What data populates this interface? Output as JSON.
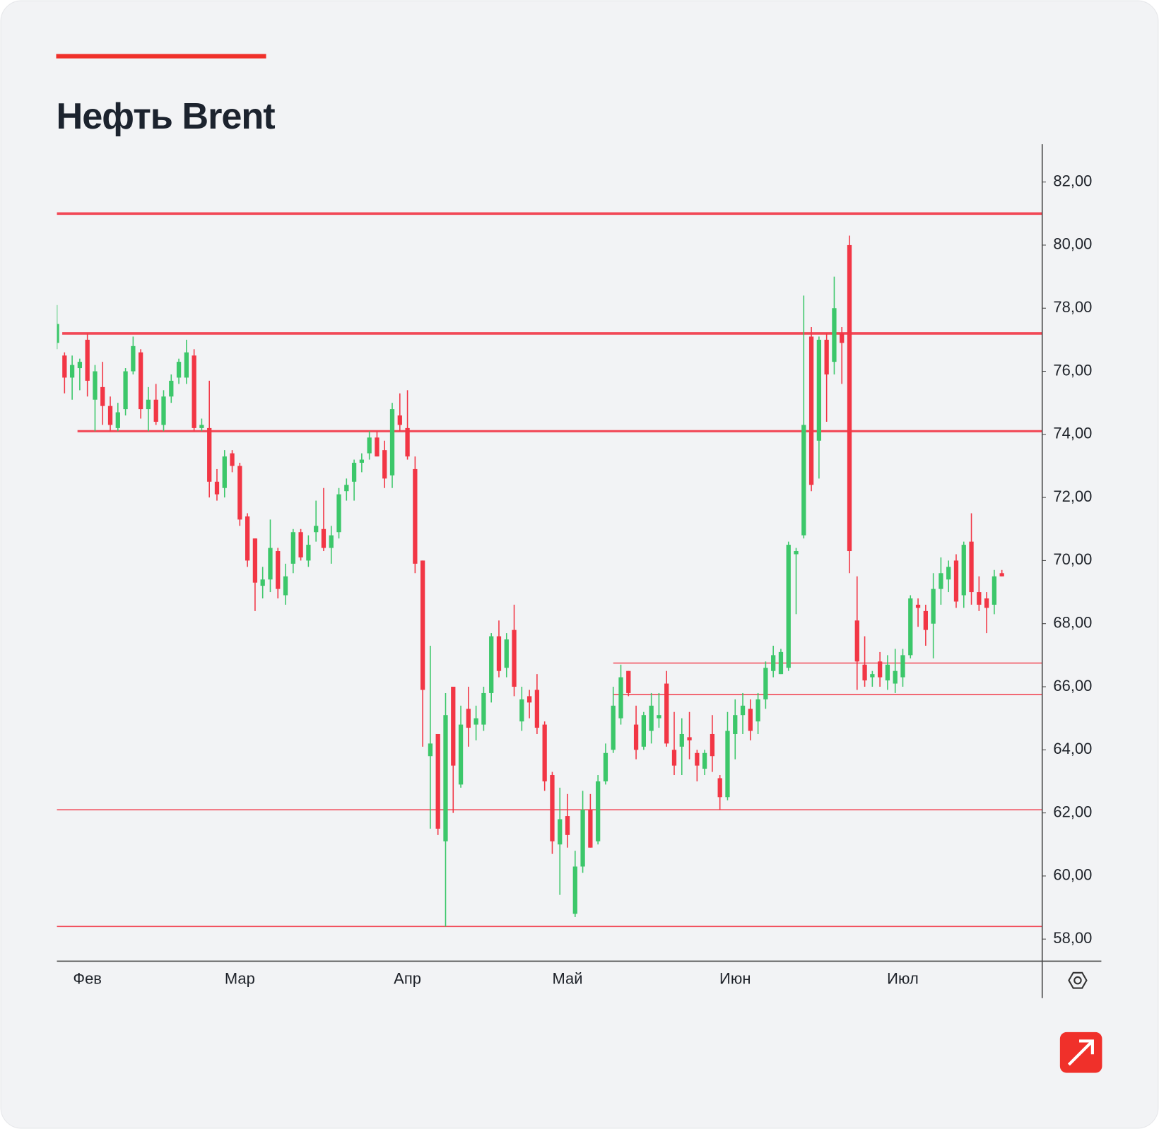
{
  "chart_data": {
    "type": "candlestick",
    "title": "Нефть Brent",
    "categories": [
      null,
      null,
      null,
      null,
      "Фев",
      null,
      null,
      null,
      null,
      null,
      null,
      null,
      null,
      null,
      null,
      null,
      null,
      null,
      null,
      null,
      null,
      null,
      null,
      null,
      "Мар",
      null,
      null,
      null,
      null,
      null,
      null,
      null,
      null,
      null,
      null,
      null,
      null,
      null,
      null,
      null,
      null,
      null,
      null,
      null,
      null,
      null,
      "Апр",
      null,
      null,
      null,
      null,
      null,
      null,
      null,
      null,
      null,
      null,
      null,
      null,
      null,
      null,
      null,
      null,
      null,
      null,
      null,
      null,
      "Май",
      null,
      null,
      null,
      null,
      null,
      null,
      null,
      null,
      null,
      null,
      null,
      null,
      null,
      null,
      null,
      null,
      null,
      null,
      null,
      null,
      null,
      "Июн",
      null,
      null,
      null,
      null,
      null,
      null,
      null,
      null,
      null,
      null,
      null,
      null,
      null,
      null,
      null,
      null,
      null,
      null,
      null,
      null,
      null,
      "Июл",
      null,
      null,
      null,
      null,
      null,
      null,
      null,
      null,
      null,
      null,
      null,
      null,
      null
    ],
    "open": [
      76.9,
      76.5,
      75.8,
      76.1,
      77.0,
      75.1,
      75.5,
      74.9,
      74.2,
      74.8,
      76.0,
      76.6,
      74.8,
      75.1,
      74.3,
      75.2,
      75.8,
      75.8,
      76.5,
      74.2,
      74.2,
      72.5,
      72.3,
      73.4,
      73.0,
      71.4,
      70.7,
      69.2,
      69.4,
      70.3,
      68.9,
      69.9,
      70.9,
      70.0,
      70.9,
      71.0,
      70.4,
      70.9,
      72.2,
      72.5,
      73.1,
      73.4,
      73.9,
      73.5,
      72.7,
      74.6,
      74.2,
      72.9,
      70.0,
      63.8,
      64.5,
      61.1,
      66.0,
      62.9,
      65.3,
      64.8,
      64.8,
      65.8,
      67.6,
      66.6,
      67.8,
      64.9,
      65.7,
      65.9,
      64.8,
      63.2,
      61.0,
      61.9,
      58.8,
      60.3,
      62.1,
      61.1,
      63.0,
      64.0,
      65.0,
      66.5,
      64.8,
      64.1,
      64.6,
      65.0,
      66.1,
      64.0,
      64.1,
      64.4,
      63.9,
      63.4,
      64.5,
      63.1,
      62.5,
      64.5,
      65.1,
      65.3,
      64.9,
      65.6,
      66.5,
      66.4,
      66.6,
      70.2,
      70.8,
      77.1,
      73.8,
      77.0,
      76.3,
      77.2,
      80.0,
      68.1,
      66.7,
      66.3,
      66.8,
      66.2,
      66.1,
      66.3,
      67.0,
      68.6,
      68.4,
      68.0,
      69.1,
      69.4,
      70.0,
      68.9,
      70.6,
      69.0,
      68.8,
      68.6,
      69.6
    ],
    "high": [
      78.1,
      76.6,
      76.5,
      76.4,
      77.2,
      76.2,
      76.3,
      75.2,
      75.0,
      76.1,
      77.1,
      76.7,
      75.5,
      75.6,
      75.4,
      75.9,
      76.4,
      77.0,
      76.7,
      74.5,
      75.7,
      72.9,
      73.5,
      73.5,
      73.1,
      71.5,
      70.7,
      69.8,
      71.3,
      70.4,
      69.9,
      71.0,
      71.0,
      70.8,
      71.9,
      72.3,
      71.1,
      72.3,
      72.6,
      73.2,
      73.4,
      74.1,
      74.1,
      73.8,
      75.0,
      75.3,
      75.4,
      73.3,
      70.0,
      67.3,
      64.5,
      65.8,
      66.0,
      65.4,
      66.0,
      65.4,
      66.0,
      67.7,
      68.1,
      67.7,
      68.6,
      66.0,
      65.9,
      66.4,
      64.9,
      63.3,
      62.8,
      62.6,
      60.8,
      62.7,
      62.6,
      63.2,
      64.2,
      66.0,
      66.7,
      66.5,
      65.4,
      65.2,
      65.8,
      65.8,
      66.5,
      65.2,
      65.0,
      65.2,
      64.0,
      64.0,
      65.1,
      63.2,
      65.2,
      65.6,
      65.8,
      65.6,
      65.8,
      66.8,
      67.3,
      67.2,
      70.6,
      70.4,
      78.4,
      77.4,
      77.1,
      77.2,
      79.0,
      77.4,
      80.3,
      69.5,
      67.6,
      66.5,
      67.1,
      67.0,
      67.2,
      67.2,
      68.9,
      68.8,
      68.6,
      69.6,
      70.1,
      70.0,
      70.2,
      70.6,
      71.5,
      69.5,
      69.0,
      69.7,
      69.7
    ],
    "low": [
      76.7,
      75.3,
      75.1,
      75.4,
      75.2,
      74.1,
      74.3,
      74.1,
      74.1,
      74.6,
      75.9,
      74.5,
      74.1,
      74.3,
      74.1,
      75.0,
      75.6,
      75.6,
      74.1,
      74.1,
      72.0,
      71.9,
      72.0,
      72.8,
      71.1,
      69.8,
      68.4,
      68.8,
      69.0,
      68.8,
      68.6,
      69.6,
      70.0,
      69.8,
      70.6,
      70.3,
      69.9,
      70.7,
      71.9,
      71.9,
      72.8,
      73.2,
      73.3,
      72.3,
      72.3,
      74.1,
      73.2,
      69.6,
      64.1,
      61.5,
      61.3,
      58.4,
      62.0,
      62.8,
      64.1,
      64.3,
      64.6,
      65.5,
      66.3,
      66.3,
      65.7,
      64.6,
      65.0,
      64.5,
      62.7,
      60.7,
      59.4,
      60.9,
      58.7,
      60.1,
      60.9,
      61.0,
      62.9,
      63.9,
      64.8,
      65.7,
      63.7,
      64.0,
      64.2,
      64.7,
      64.1,
      63.2,
      63.2,
      63.7,
      63.0,
      63.2,
      63.3,
      62.1,
      62.4,
      63.7,
      64.5,
      64.3,
      64.5,
      65.3,
      66.3,
      66.4,
      66.5,
      68.3,
      70.7,
      72.2,
      72.6,
      74.4,
      75.9,
      75.6,
      69.6,
      65.9,
      66.0,
      66.0,
      66.0,
      65.9,
      65.8,
      66.0,
      66.9,
      67.9,
      67.3,
      66.9,
      68.6,
      69.0,
      68.5,
      68.5,
      68.6,
      68.4,
      67.7,
      68.3,
      69.5
    ],
    "close": [
      77.5,
      75.8,
      76.2,
      76.3,
      75.7,
      76.0,
      74.9,
      74.3,
      74.7,
      76.0,
      76.8,
      74.8,
      75.1,
      74.4,
      75.2,
      75.7,
      76.3,
      76.6,
      74.2,
      74.3,
      72.5,
      72.1,
      73.3,
      73.0,
      71.3,
      70.0,
      69.3,
      69.4,
      70.4,
      69.1,
      69.5,
      70.9,
      70.1,
      70.5,
      71.1,
      70.4,
      70.8,
      72.1,
      72.4,
      73.1,
      73.2,
      73.9,
      73.3,
      72.6,
      74.8,
      74.3,
      73.3,
      69.9,
      65.9,
      64.2,
      61.5,
      65.1,
      63.5,
      64.8,
      64.7,
      65.0,
      65.8,
      67.6,
      66.5,
      67.5,
      66.0,
      65.6,
      65.5,
      64.7,
      63.0,
      61.1,
      61.8,
      61.3,
      60.3,
      62.1,
      60.9,
      63.0,
      63.9,
      65.4,
      66.3,
      65.8,
      64.0,
      65.1,
      65.4,
      65.1,
      64.2,
      63.5,
      64.5,
      64.3,
      63.5,
      63.9,
      63.8,
      62.5,
      64.6,
      65.1,
      65.4,
      64.6,
      65.6,
      66.6,
      67.0,
      67.1,
      70.5,
      70.3,
      74.3,
      72.4,
      77.0,
      75.9,
      78.0,
      76.9,
      70.3,
      66.8,
      66.2,
      66.4,
      66.3,
      66.7,
      66.5,
      67.0,
      68.8,
      68.5,
      67.8,
      69.1,
      69.6,
      69.8,
      68.7,
      70.5,
      69.0,
      68.6,
      68.5,
      69.5,
      69.5
    ],
    "up_color": "#3cc76a",
    "down_color": "#f23645",
    "levels": [
      81.0,
      77.2,
      74.1,
      66.75,
      65.75,
      62.1,
      58.4
    ],
    "level_color": "#f23645",
    "ylim": [
      57.3,
      83.2
    ],
    "yticks": [
      {
        "value": 58,
        "label": "58,00"
      },
      {
        "value": 60,
        "label": "60,00"
      },
      {
        "value": 62,
        "label": "62,00"
      },
      {
        "value": 64,
        "label": "64,00"
      },
      {
        "value": 66,
        "label": "66,00"
      },
      {
        "value": 68,
        "label": "68,00"
      },
      {
        "value": 70,
        "label": "70,00"
      },
      {
        "value": 72,
        "label": "72,00"
      },
      {
        "value": 74,
        "label": "74,00"
      },
      {
        "value": 76,
        "label": "76,00"
      },
      {
        "value": 78,
        "label": "78,00"
      },
      {
        "value": 80,
        "label": "80,00"
      },
      {
        "value": 82,
        "label": "82,00"
      }
    ],
    "y_axis_side": "right",
    "grid": false
  }
}
